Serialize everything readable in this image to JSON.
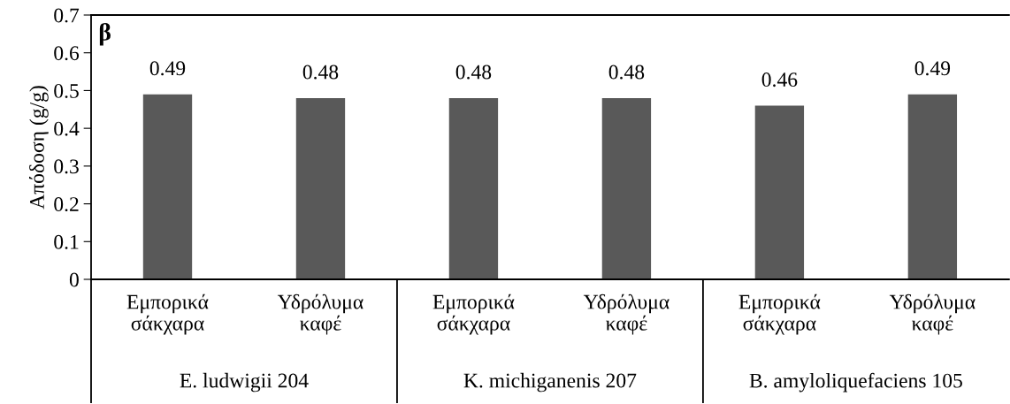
{
  "chart_data": {
    "type": "bar",
    "title": "β",
    "ylabel": "Απόδοση (g/g)",
    "categories": [
      "Εμπορικά\nσάκχαρα",
      "Υδρόλυμα\nκαφέ",
      "Εμπορικά\nσάκχαρα",
      "Υδρόλυμα\nκαφέ",
      "Εμπορικά\nσάκχαρα",
      "Υδρόλυμα\nκαφέ"
    ],
    "values": [
      0.49,
      0.48,
      0.48,
      0.48,
      0.46,
      0.49
    ],
    "color": "#595959",
    "ylim": [
      0,
      0.7
    ],
    "yticks": [
      0,
      0.1,
      0.2,
      0.3,
      0.4,
      0.5,
      0.6,
      0.7
    ],
    "data_labels": true,
    "grid": false,
    "legend": false,
    "annotations": [
      "E. ludwigii 204",
      "K. michiganenis 207",
      "B. amyloliquefaciens 105"
    ]
  }
}
